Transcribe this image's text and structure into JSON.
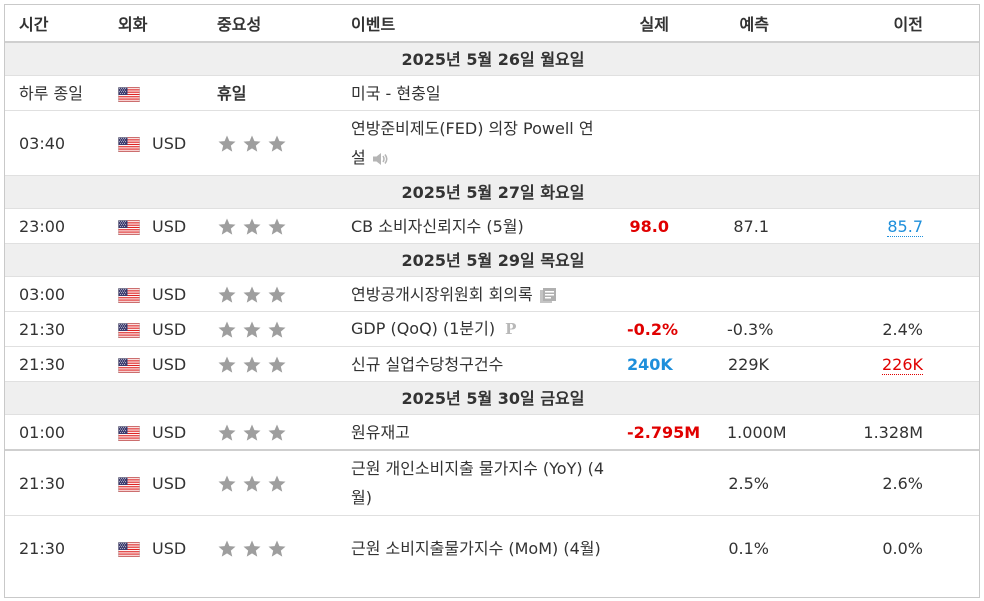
{
  "headers": {
    "time": "시간",
    "currency": "외화",
    "importance": "중요성",
    "event": "이벤트",
    "actual": "실제",
    "forecast": "예측",
    "previous": "이전"
  },
  "colors": {
    "positive": "#1e8fdb",
    "negative": "#e00000",
    "day_bg": "#efefef"
  },
  "days": [
    {
      "label": "2025년 5월 26일 월요일"
    },
    {
      "label": "2025년 5월 27일 화요일"
    },
    {
      "label": "2025년 5월 29일 목요일"
    },
    {
      "label": "2025년 5월 30일 금요일"
    }
  ],
  "rows": [
    {
      "time": "하루 종일",
      "currency": "",
      "holiday_label": "휴일",
      "event": "미국 - 현충일",
      "actual": "",
      "forecast": "",
      "previous": ""
    },
    {
      "time": "03:40",
      "currency": "USD",
      "event": "연방준비제도(FED) 의장 Powell 연설",
      "event_icon": "speaker-icon",
      "actual": "",
      "forecast": "",
      "previous": ""
    },
    {
      "time": "23:00",
      "currency": "USD",
      "event": "CB 소비자신뢰지수 (5월)",
      "actual": "98.0",
      "forecast": "87.1",
      "previous": "85.7"
    },
    {
      "time": "03:00",
      "currency": "USD",
      "event": "연방공개시장위원회 회의록",
      "event_icon": "document-icon",
      "actual": "",
      "forecast": "",
      "previous": ""
    },
    {
      "time": "21:30",
      "currency": "USD",
      "event": "GDP (QoQ) (1분기)",
      "event_icon": "preliminary-p-icon",
      "event_icon_text": "P",
      "actual": "-0.2%",
      "forecast": "-0.3%",
      "previous": "2.4%"
    },
    {
      "time": "21:30",
      "currency": "USD",
      "event": "신규 실업수당청구건수",
      "actual": "240K",
      "forecast": "229K",
      "previous": "226K"
    },
    {
      "time": "01:00",
      "currency": "USD",
      "event": "원유재고",
      "actual": "-2.795M",
      "forecast": "1.000M",
      "previous": "1.328M"
    },
    {
      "time": "21:30",
      "currency": "USD",
      "event": "근원 개인소비지출 물가지수 (YoY) (4월)",
      "actual": "",
      "forecast": "2.5%",
      "previous": "2.6%"
    },
    {
      "time": "21:30",
      "currency": "USD",
      "event": "근원 소비지출물가지수 (MoM) (4월)",
      "actual": "",
      "forecast": "0.1%",
      "previous": "0.0%"
    }
  ]
}
